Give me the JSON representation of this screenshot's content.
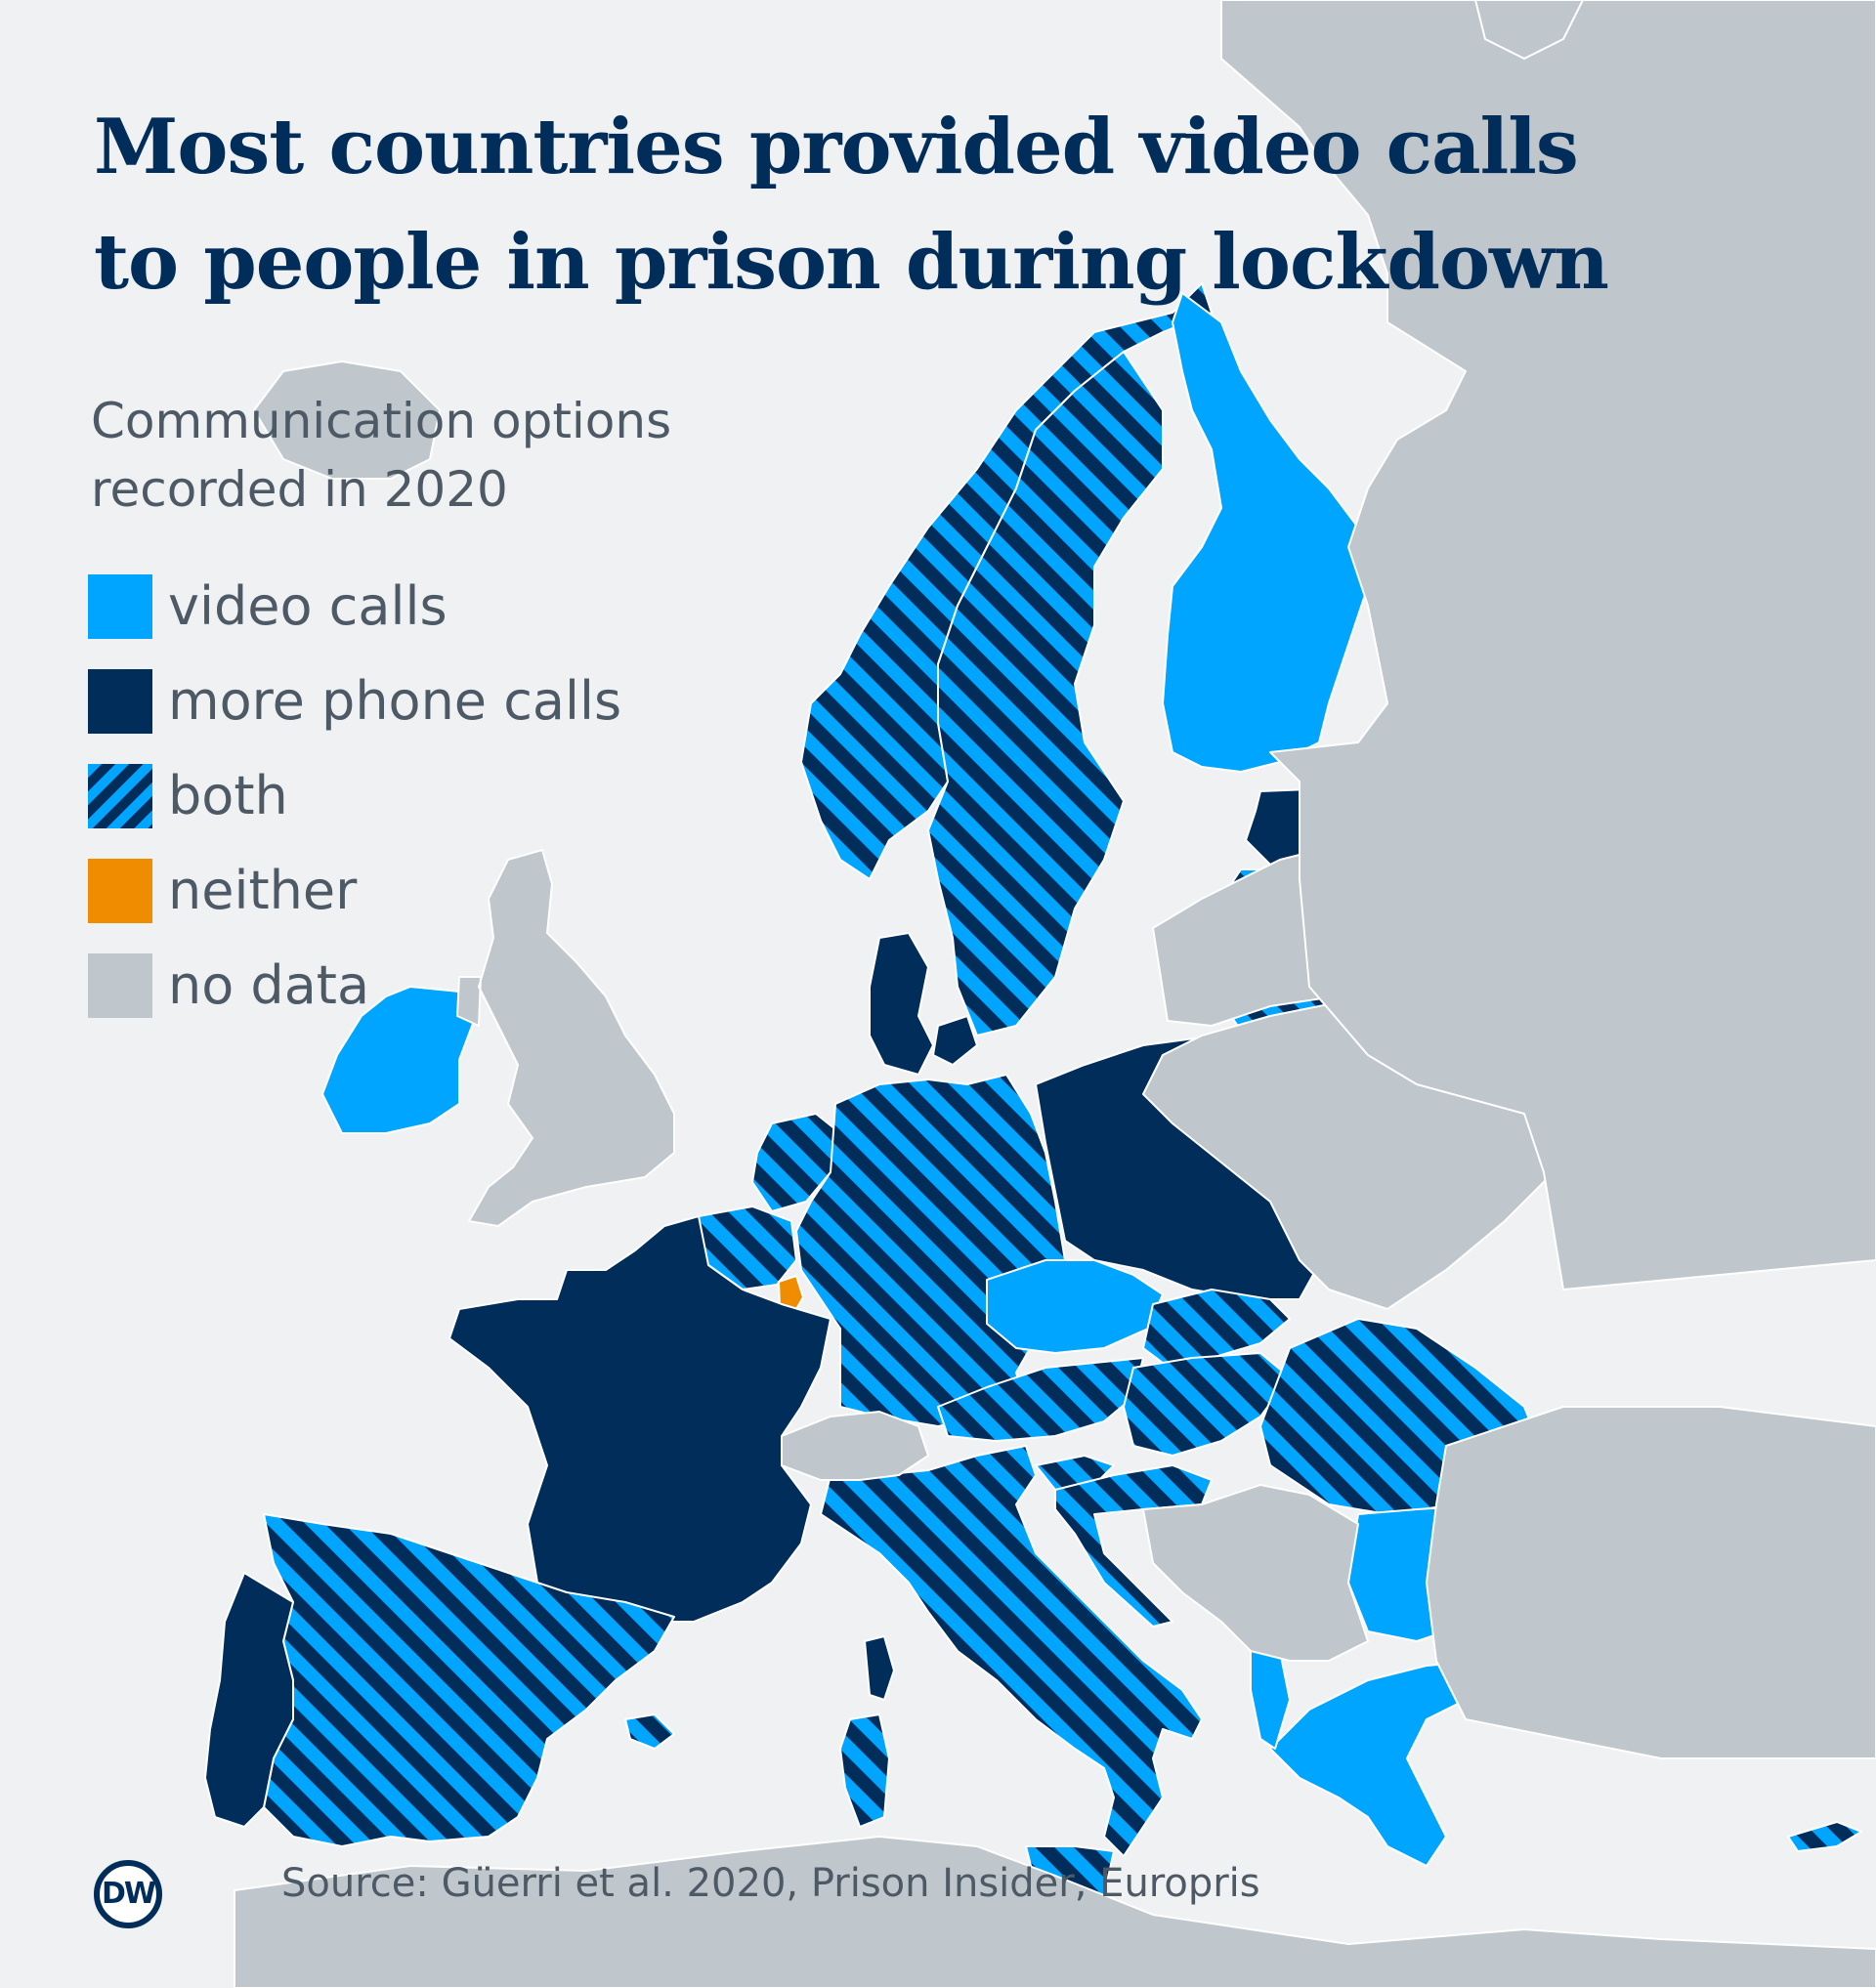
{
  "title_lines": [
    "Most countries provided video calls",
    "to people in prison during lockdown"
  ],
  "subtitle_lines": [
    "Communication options",
    "recorded in 2020"
  ],
  "legend": [
    {
      "key": "video",
      "label": "video calls",
      "color": "#00a5ff"
    },
    {
      "key": "phone",
      "label": "more phone calls",
      "color": "#002d5a"
    },
    {
      "key": "both",
      "label": "both",
      "color": "#00a5ff/#002d5a stripes"
    },
    {
      "key": "neither",
      "label": "neither",
      "color": "#f08c00"
    },
    {
      "key": "nodata",
      "label": "no data",
      "color": "#bfc6cc"
    }
  ],
  "colors": {
    "sea": "#f0f1f3",
    "video": "#00a5ff",
    "phone": "#002d5a",
    "neither": "#f08c00",
    "nodata": "#bfc6cc",
    "border": "#ffffff",
    "title": "#002d5a",
    "text": "#4d5a66"
  },
  "countries": [
    {
      "name": "Norway",
      "category": "both"
    },
    {
      "name": "Sweden",
      "category": "both"
    },
    {
      "name": "Finland",
      "category": "video"
    },
    {
      "name": "Estonia",
      "category": "phone"
    },
    {
      "name": "Latvia",
      "category": "both"
    },
    {
      "name": "Lithuania",
      "category": "both"
    },
    {
      "name": "Denmark",
      "category": "phone"
    },
    {
      "name": "Ireland",
      "category": "video"
    },
    {
      "name": "United Kingdom",
      "category": "nodata"
    },
    {
      "name": "Netherlands",
      "category": "both"
    },
    {
      "name": "Belgium",
      "category": "both"
    },
    {
      "name": "Luxembourg",
      "category": "neither"
    },
    {
      "name": "Germany",
      "category": "both"
    },
    {
      "name": "Poland",
      "category": "phone"
    },
    {
      "name": "Czech Republic",
      "category": "video"
    },
    {
      "name": "Slovakia",
      "category": "both"
    },
    {
      "name": "Austria",
      "category": "both"
    },
    {
      "name": "Hungary",
      "category": "both"
    },
    {
      "name": "Slovenia",
      "category": "both"
    },
    {
      "name": "Croatia",
      "category": "both"
    },
    {
      "name": "Romania",
      "category": "both"
    },
    {
      "name": "Bulgaria",
      "category": "video"
    },
    {
      "name": "Greece",
      "category": "video"
    },
    {
      "name": "Albania",
      "category": "video"
    },
    {
      "name": "Italy",
      "category": "both"
    },
    {
      "name": "Corsica",
      "category": "phone"
    },
    {
      "name": "Sardinia",
      "category": "both"
    },
    {
      "name": "Sicily",
      "category": "both"
    },
    {
      "name": "Malta",
      "category": "phone"
    },
    {
      "name": "Cyprus",
      "category": "both"
    },
    {
      "name": "France",
      "category": "phone"
    },
    {
      "name": "Spain",
      "category": "both"
    },
    {
      "name": "Portugal",
      "category": "phone"
    },
    {
      "name": "Switzerland",
      "category": "nodata"
    },
    {
      "name": "Balkans",
      "category": "nodata"
    },
    {
      "name": "Belarus",
      "category": "nodata"
    },
    {
      "name": "Ukraine",
      "category": "nodata"
    },
    {
      "name": "Russia",
      "category": "nodata"
    },
    {
      "name": "Turkey",
      "category": "nodata"
    },
    {
      "name": "North Africa",
      "category": "nodata"
    },
    {
      "name": "Iceland",
      "category": "nodata"
    },
    {
      "name": "Svalbard",
      "category": "nodata"
    }
  ],
  "logo_text": "DW",
  "source": "Source: Güerri et al. 2020, Prison Insider, Europris"
}
